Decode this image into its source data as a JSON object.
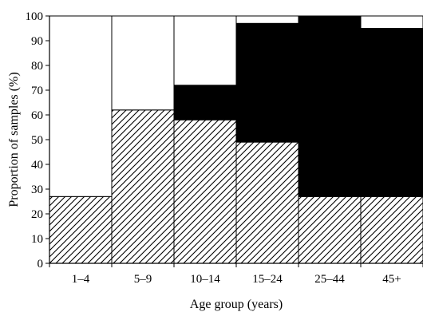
{
  "chart_data": {
    "type": "bar",
    "stacked": true,
    "bar_gap": 0,
    "categories": [
      "1–4",
      "5–9",
      "10–14",
      "15–24",
      "25–44",
      "45+"
    ],
    "series": [
      {
        "pattern": "diagonal-hatch",
        "color": "#000000",
        "values": [
          27,
          62,
          58,
          49,
          27,
          27
        ]
      },
      {
        "pattern": "solid",
        "color": "#000000",
        "values": [
          0,
          0,
          14,
          48,
          73,
          68
        ]
      },
      {
        "pattern": "none",
        "color": "#ffffff",
        "values": [
          73,
          38,
          28,
          3,
          0,
          5
        ]
      }
    ],
    "xlabel": "Age group (years)",
    "ylabel": "Proportion of samples (%)",
    "ylim": [
      0,
      100
    ],
    "yticks": [
      "0",
      "10",
      "20",
      "30",
      "40",
      "50",
      "60",
      "70",
      "80",
      "90",
      "100"
    ],
    "grid": false
  }
}
